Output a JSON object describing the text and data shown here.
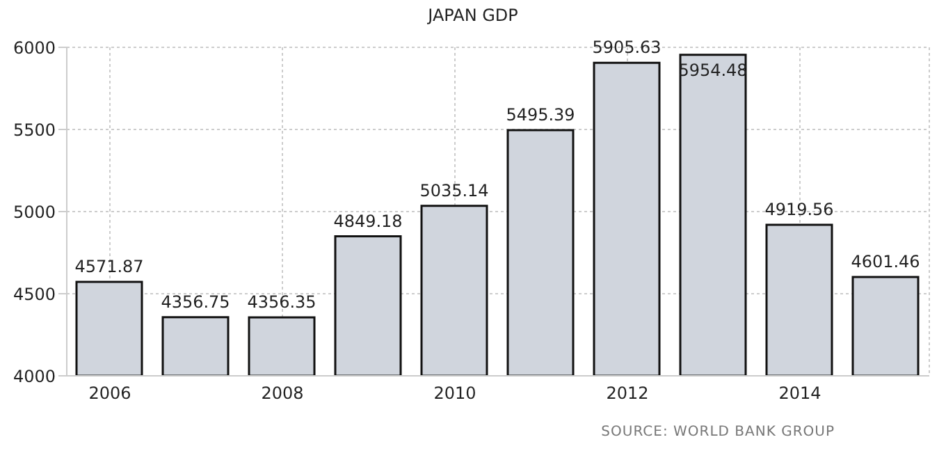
{
  "chart_data": {
    "type": "bar",
    "title": "JAPAN GDP",
    "categories": [
      "2006",
      null,
      "2008",
      null,
      "2010",
      null,
      "2012",
      null,
      "2014",
      null
    ],
    "values": [
      4571.87,
      4356.75,
      4356.35,
      4849.18,
      5035.14,
      5495.39,
      5905.63,
      5954.48,
      4919.56,
      4601.46
    ],
    "color": "#d0d5dd",
    "ylim": [
      4000,
      6000
    ],
    "yticks": [
      4000,
      4500,
      5000,
      5500,
      6000
    ],
    "grid": true,
    "data_labels": true,
    "annotations": [
      "SOURCE:  WORLD BANK GROUP"
    ]
  }
}
